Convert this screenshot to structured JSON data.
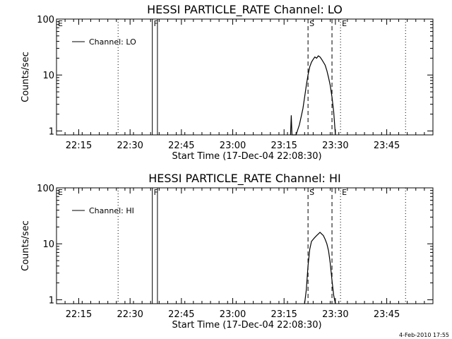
{
  "chart_data": [
    {
      "type": "line",
      "title": "HESSI PARTICLE_RATE Channel: LO",
      "xlabel": "Start Time (17-Dec-04 22:08:30)",
      "ylabel": "Counts/sec",
      "yscale": "log",
      "ylim": [
        0.85,
        100
      ],
      "xlim_min": [
        0,
        110
      ],
      "xtick_labels": [
        "22:15",
        "22:30",
        "22:45",
        "23:00",
        "23:15",
        "23:30",
        "23:45"
      ],
      "xtick_min": [
        6.5,
        21.5,
        36.5,
        51.5,
        66.5,
        81.5,
        96.5
      ],
      "ytick_labels": [
        "1",
        "10",
        "100"
      ],
      "ytick_values": [
        1,
        10,
        100
      ],
      "legend": "Channel: LO",
      "legend_position": "top-left",
      "flags": [
        {
          "label": "E",
          "x_min": 0,
          "style": "dotted"
        },
        {
          "label": "",
          "x_min": 18,
          "style": "dotted"
        },
        {
          "label": "F",
          "x_min": 28,
          "style": "solid"
        },
        {
          "label": "",
          "x_min": 29.5,
          "style": "solid"
        },
        {
          "label": "S",
          "x_min": 73.5,
          "style": "dashed"
        },
        {
          "label": "",
          "x_min": 80.5,
          "style": "dashed"
        },
        {
          "label": "E",
          "x_min": 83,
          "style": "dotted"
        },
        {
          "label": "",
          "x_min": 102,
          "style": "dotted"
        }
      ],
      "series": [
        {
          "x_min": [
            68.4,
            68.6,
            68.8,
            69.0,
            70.0,
            71.0,
            72.0,
            72.5,
            73.0,
            73.5,
            74.0,
            74.5,
            75.0,
            75.5,
            76.0,
            76.5,
            77.0,
            77.5,
            78.0,
            78.5,
            79.0,
            79.5,
            80.0,
            80.5,
            81.0,
            81.5
          ],
          "y": [
            0.85,
            1.9,
            0.85,
            0.85,
            0.85,
            1.3,
            2.5,
            4.0,
            6.5,
            10,
            14,
            17,
            19,
            21,
            20,
            22,
            21,
            19,
            17,
            15,
            12,
            9,
            6.5,
            4,
            2.2,
            0.85
          ]
        }
      ]
    },
    {
      "type": "line",
      "title": "HESSI PARTICLE_RATE Channel: HI",
      "xlabel": "Start Time (17-Dec-04 22:08:30)",
      "ylabel": "Counts/sec",
      "yscale": "log",
      "ylim": [
        0.85,
        100
      ],
      "xlim_min": [
        0,
        110
      ],
      "xtick_labels": [
        "22:15",
        "22:30",
        "22:45",
        "23:00",
        "23:15",
        "23:30",
        "23:45"
      ],
      "xtick_min": [
        6.5,
        21.5,
        36.5,
        51.5,
        66.5,
        81.5,
        96.5
      ],
      "ytick_labels": [
        "1",
        "10",
        "100"
      ],
      "ytick_values": [
        1,
        10,
        100
      ],
      "legend": "Channel: HI",
      "legend_position": "top-left",
      "flags": [
        {
          "label": "E",
          "x_min": 0,
          "style": "dotted"
        },
        {
          "label": "",
          "x_min": 18,
          "style": "dotted"
        },
        {
          "label": "F",
          "x_min": 28,
          "style": "solid"
        },
        {
          "label": "",
          "x_min": 29.5,
          "style": "solid"
        },
        {
          "label": "S",
          "x_min": 73.5,
          "style": "dashed"
        },
        {
          "label": "",
          "x_min": 80.5,
          "style": "dashed"
        },
        {
          "label": "E",
          "x_min": 83,
          "style": "dotted"
        },
        {
          "label": "",
          "x_min": 102,
          "style": "dotted"
        }
      ],
      "series": [
        {
          "x_min": [
            72.5,
            73.0,
            73.5,
            74.0,
            74.5,
            75.0,
            75.5,
            76.0,
            76.5,
            77.0,
            77.5,
            78.0,
            78.5,
            79.0,
            79.5,
            80.0,
            80.5,
            81.0,
            81.5
          ],
          "y": [
            0.85,
            1.5,
            4.0,
            8.0,
            11,
            12,
            13,
            14,
            15,
            16,
            15,
            14,
            12,
            10,
            7.5,
            4.5,
            2.2,
            1.2,
            0.85
          ]
        }
      ]
    }
  ],
  "timestamp": "4-Feb-2010 17:55"
}
